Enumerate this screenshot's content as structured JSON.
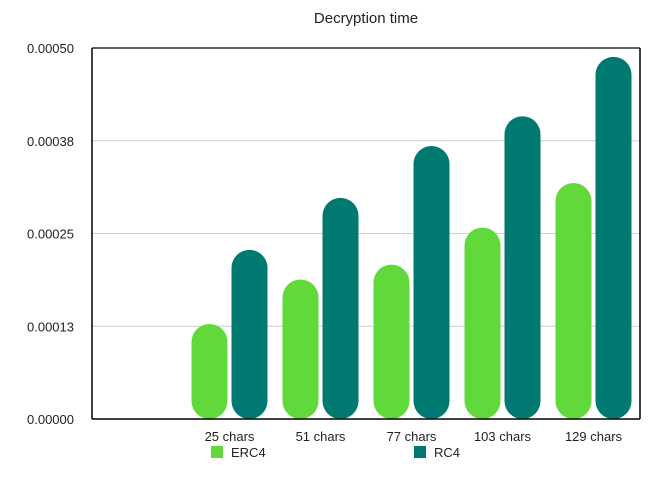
{
  "chart_data": {
    "type": "bar",
    "title": "Decryption time",
    "categories": [
      "25 chars",
      "51 chars",
      "77 chars",
      "103 chars",
      "129 chars"
    ],
    "series": [
      {
        "name": "ERC4",
        "color": "#62d93a",
        "values": [
          0.000128,
          0.000188,
          0.000208,
          0.000258,
          0.000318
        ]
      },
      {
        "name": "RC4",
        "color": "#007a70",
        "values": [
          0.000228,
          0.000298,
          0.000368,
          0.000408,
          0.000488
        ]
      }
    ],
    "yticks": [
      "0.00000",
      "0.00013",
      "0.00025",
      "0.00038",
      "0.00050"
    ],
    "ylim": [
      0,
      0.0005
    ],
    "grid": true,
    "legend_position": "bottom"
  }
}
